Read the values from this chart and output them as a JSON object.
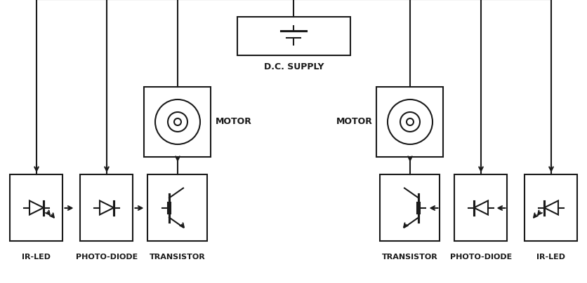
{
  "bg_color": "#ffffff",
  "line_color": "#1a1a1a",
  "box_color": "#ffffff",
  "lw": 1.5,
  "labels": {
    "dc_supply": "D.C. SUPPLY",
    "motor_left": "MOTOR",
    "motor_right": "MOTOR",
    "ir_led_left": "IR-LED",
    "photo_diode_left": "PHOTO-DIODE",
    "transistor_left": "TRANSISTOR",
    "transistor_right": "TRANSISTOR",
    "photo_diode_right": "PHOTO-DIODE",
    "ir_led_right": "IR-LED"
  }
}
